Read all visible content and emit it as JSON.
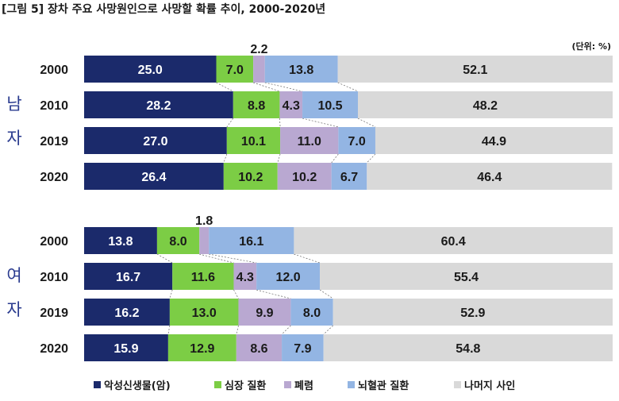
{
  "chart_data": {
    "type": "bar",
    "orientation": "horizontal",
    "stacked": true,
    "title": "[그림 5] 장차 주요 사망원인으로 사망할 확률 추이, 2000-2020년",
    "unit": "(단위: %)",
    "xlim": [
      0,
      100
    ],
    "grid": false,
    "legend_position": "bottom",
    "series": [
      {
        "name": "악성신생물(암)",
        "color": "#1b2a6b",
        "text_color": "#ffffff"
      },
      {
        "name": "심장 질환",
        "color": "#7ccd45",
        "text_color": "#1a1a1a"
      },
      {
        "name": "폐렴",
        "color": "#b9a8d1",
        "text_color": "#1a1a1a"
      },
      {
        "name": "뇌혈관 질환",
        "color": "#93b5e3",
        "text_color": "#1a1a1a"
      },
      {
        "name": "나머지 사인",
        "color": "#d9d9d9",
        "text_color": "#1a1a1a"
      }
    ],
    "groups": [
      {
        "label": "남자",
        "label_chars": [
          "남",
          "자"
        ],
        "rows": [
          {
            "year": "2000",
            "values": [
              25.0,
              7.0,
              2.2,
              13.8,
              52.1
            ],
            "labels": [
              "25.0",
              "7.0",
              "2.2",
              "13.8",
              "52.1"
            ],
            "outside_above": [
              2
            ]
          },
          {
            "year": "2010",
            "values": [
              28.2,
              8.8,
              4.3,
              10.5,
              48.2
            ],
            "labels": [
              "28.2",
              "8.8",
              "4.3",
              "10.5",
              "48.2"
            ],
            "outside_above": []
          },
          {
            "year": "2019",
            "values": [
              27.0,
              10.1,
              11.0,
              7.0,
              44.9
            ],
            "labels": [
              "27.0",
              "10.1",
              "11.0",
              "7.0",
              "44.9"
            ],
            "outside_above": []
          },
          {
            "year": "2020",
            "values": [
              26.4,
              10.2,
              10.2,
              6.7,
              46.4
            ],
            "labels": [
              "26.4",
              "10.2",
              "10.2",
              "6.7",
              "46.4"
            ],
            "outside_above": []
          }
        ]
      },
      {
        "label": "여자",
        "label_chars": [
          "여",
          "자"
        ],
        "rows": [
          {
            "year": "2000",
            "values": [
              13.8,
              8.0,
              1.8,
              16.1,
              60.4
            ],
            "labels": [
              "13.8",
              "8.0",
              "1.8",
              "16.1",
              "60.4"
            ],
            "outside_above": [
              2
            ]
          },
          {
            "year": "2010",
            "values": [
              16.7,
              11.6,
              4.3,
              12.0,
              55.4
            ],
            "labels": [
              "16.7",
              "11.6",
              "4.3",
              "12.0",
              "55.4"
            ],
            "outside_above": []
          },
          {
            "year": "2019",
            "values": [
              16.2,
              13.0,
              9.9,
              8.0,
              52.9
            ],
            "labels": [
              "16.2",
              "13.0",
              "9.9",
              "8.0",
              "52.9"
            ],
            "outside_above": []
          },
          {
            "year": "2020",
            "values": [
              15.9,
              12.9,
              8.6,
              7.9,
              54.8
            ],
            "labels": [
              "15.9",
              "12.9",
              "8.6",
              "7.9",
              "54.8"
            ],
            "outside_above": []
          }
        ]
      }
    ]
  }
}
